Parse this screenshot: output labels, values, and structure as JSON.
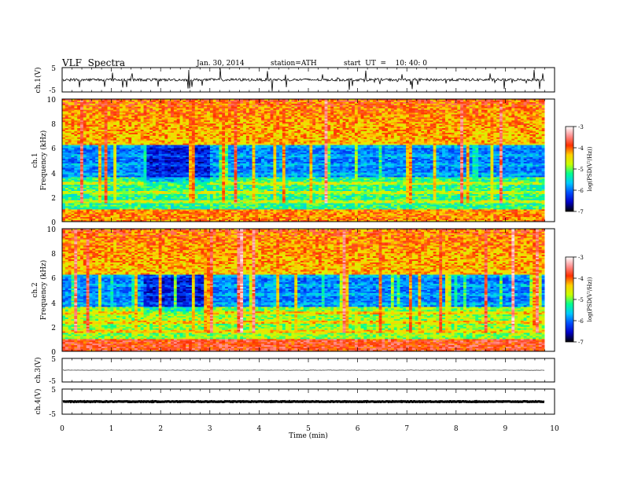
{
  "header": {
    "title": "VLF  Spectra",
    "date": "Jan. 30, 2014",
    "station": "station=ATH",
    "start": "start  UT  =    10: 40: 0"
  },
  "chart_data": [
    {
      "type": "line",
      "name": "ch1-waveform",
      "ylabel": "ch.1(V)",
      "ylim": [
        -5,
        5
      ],
      "yticks": [
        "5",
        "-5"
      ],
      "xlim": [
        0,
        10
      ],
      "approx_level": 0,
      "data_end_min": 9.8
    },
    {
      "type": "heatmap",
      "name": "ch1-spectrogram",
      "ylabel_top": "ch.1",
      "ylabel": "Frequency  (kHz)",
      "ylim": [
        0,
        10
      ],
      "yticks": [
        "0",
        "2",
        "4",
        "6",
        "8",
        "10"
      ],
      "xlim": [
        0,
        10
      ],
      "data_end_min": 9.8,
      "colorbar": {
        "label": "log(PSD(V²/Hz))",
        "range": [
          -7,
          -3
        ],
        "ticks": [
          "-7",
          "-6",
          "-5",
          "-4",
          "-3"
        ],
        "colors": [
          "#000000",
          "#0000c8",
          "#0050ff",
          "#00c8ff",
          "#00ff90",
          "#c8ff00",
          "#ffd000",
          "#ff3000",
          "#ff9090",
          "#ffffff"
        ]
      }
    },
    {
      "type": "heatmap",
      "name": "ch2-spectrogram",
      "ylabel_top": "ch.2",
      "ylabel": "Frequency  (kHz)",
      "ylim": [
        0,
        10
      ],
      "yticks": [
        "0",
        "2",
        "4",
        "6",
        "8",
        "10"
      ],
      "xlim": [
        0,
        10
      ],
      "data_end_min": 9.8,
      "colorbar": {
        "label": "log(PSD(V²/Hz))",
        "range": [
          -7,
          -3
        ],
        "ticks": [
          "-7",
          "-6",
          "-5",
          "-4",
          "-3"
        ],
        "colors": [
          "#000000",
          "#0000c8",
          "#0050ff",
          "#00c8ff",
          "#00ff90",
          "#c8ff00",
          "#ffd000",
          "#ff3000",
          "#ff9090",
          "#ffffff"
        ]
      }
    },
    {
      "type": "line",
      "name": "ch3-waveform",
      "ylabel": "ch.3(V)",
      "ylim": [
        -5,
        5
      ],
      "yticks": [
        "5",
        "-5"
      ],
      "xlim": [
        0,
        10
      ],
      "approx_level": 0,
      "data_end_min": 9.8
    },
    {
      "type": "line",
      "name": "ch4-waveform",
      "ylabel": "ch.4(V)",
      "ylim": [
        -5,
        5
      ],
      "yticks": [
        "5",
        "-5"
      ],
      "xlim": [
        0,
        10
      ],
      "approx_level": 0,
      "data_end_min": 9.8
    }
  ],
  "xaxis": {
    "label": "Time  (min)",
    "ticks": [
      "0",
      "1",
      "2",
      "3",
      "4",
      "5",
      "6",
      "7",
      "8",
      "9",
      "10"
    ]
  }
}
